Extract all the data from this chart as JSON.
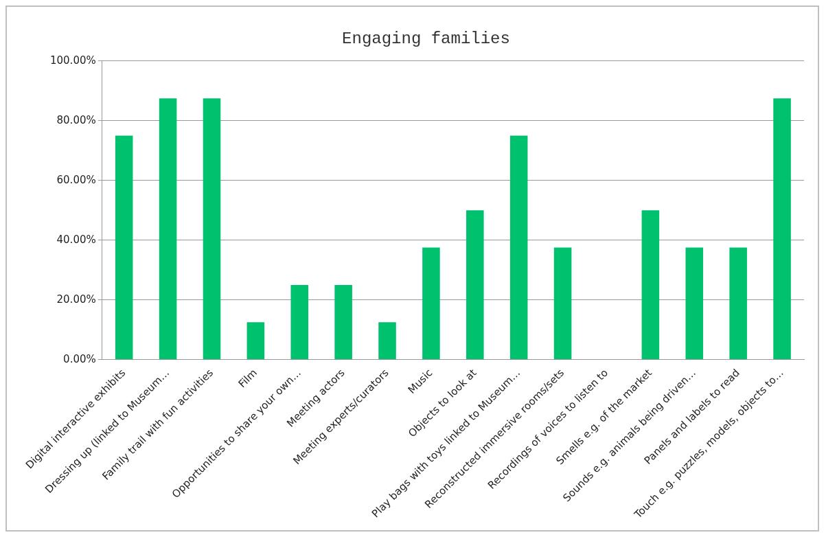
{
  "chart_data": {
    "type": "bar",
    "title": "Engaging families",
    "categories": [
      "Digital interactive exhibits",
      "Dressing up (linked to Museum…",
      "Family trail with fun activities",
      "Film",
      "Opportunities to share your own…",
      "Meeting actors",
      "Meeting experts/curators",
      "Music",
      "Objects to look at",
      "Play bags with toys linked to Museum…",
      "Reconstructed immersive rooms/sets",
      "Recordings of voices to listen to",
      "Smells e.g. of the market",
      "Sounds e.g. animals being driven…",
      "Panels and labels to read",
      "Touch e.g. puzzles, models, objects to…"
    ],
    "values": [
      75,
      87.5,
      87.5,
      12.5,
      25,
      25,
      12.5,
      37.5,
      50,
      75,
      37.5,
      0,
      50,
      37.5,
      37.5,
      87.5
    ],
    "color": "#00c16e",
    "ylim": [
      0,
      100
    ],
    "yticks": [
      {
        "value": 0,
        "label": "0.00%"
      },
      {
        "value": 20,
        "label": "20.00%"
      },
      {
        "value": 40,
        "label": "40.00%"
      },
      {
        "value": 60,
        "label": "60.00%"
      },
      {
        "value": 80,
        "label": "80.00%"
      },
      {
        "value": 100,
        "label": "100.00%"
      }
    ],
    "grid": "y",
    "legend": false
  }
}
